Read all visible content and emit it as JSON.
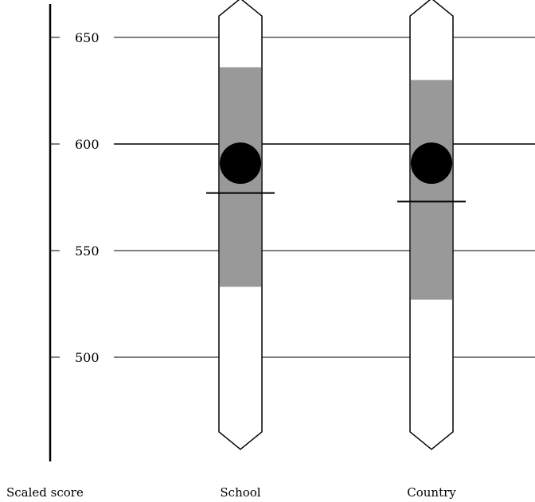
{
  "chart_data": {
    "type": "range",
    "title": "",
    "ylabel": "Scaled score",
    "xlabel": "",
    "ylim": [
      465,
      660
    ],
    "yticks": [
      500,
      550,
      600,
      650
    ],
    "grid": true,
    "categories": [
      {
        "label": "School",
        "range_min": 465,
        "range_max": 660,
        "band_low": 533,
        "band_high": 636,
        "point": 591,
        "marker": 577
      },
      {
        "label": "Country",
        "range_min": 465,
        "range_max": 660,
        "band_low": 527,
        "band_high": 630,
        "point": 591,
        "marker": 573
      }
    ],
    "colors": {
      "band": "#999999",
      "point": "#000000",
      "outline": "#000000"
    }
  }
}
